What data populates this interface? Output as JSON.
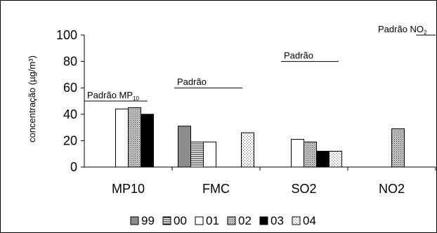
{
  "chart_data": {
    "type": "bar",
    "ylabel": "concentração (µg/m³)",
    "ylim": [
      0,
      100
    ],
    "y_ticks": [
      0,
      20,
      40,
      60,
      80,
      100
    ],
    "categories": [
      "MP10",
      "FMC",
      "SO2",
      "NO2"
    ],
    "grid": false,
    "legend_position": "bottom",
    "series": [
      {
        "name": "99",
        "pattern": "solid-gray",
        "color": "#8c8c8c",
        "values": [
          null,
          31,
          null,
          null
        ]
      },
      {
        "name": "00",
        "pattern": "horizontal-lines",
        "color": "#000000",
        "values": [
          null,
          19,
          null,
          null
        ]
      },
      {
        "name": "01",
        "pattern": "white",
        "color": "#ffffff",
        "values": [
          44,
          19,
          21,
          null
        ]
      },
      {
        "name": "02",
        "pattern": "dense-dots",
        "color": "#a0a0a0",
        "values": [
          45,
          null,
          19,
          29
        ]
      },
      {
        "name": "03",
        "pattern": "solid-black",
        "color": "#000000",
        "values": [
          40,
          null,
          12,
          null
        ]
      },
      {
        "name": "04",
        "pattern": "sparse-dots",
        "color": "#c8c8c8",
        "values": [
          null,
          26,
          12,
          null
        ]
      }
    ],
    "reference_lines": [
      {
        "label": "Padrão MP",
        "subscript": "10",
        "value": 50,
        "category": "MP10"
      },
      {
        "label": "Padrão",
        "subscript": "",
        "value": 60,
        "category": "FMC"
      },
      {
        "label": "Padrão",
        "subscript": "",
        "value": 80,
        "category": "SO2"
      },
      {
        "label": "Padrão NO",
        "subscript": "2",
        "value": 100,
        "category": "NO2"
      }
    ]
  }
}
